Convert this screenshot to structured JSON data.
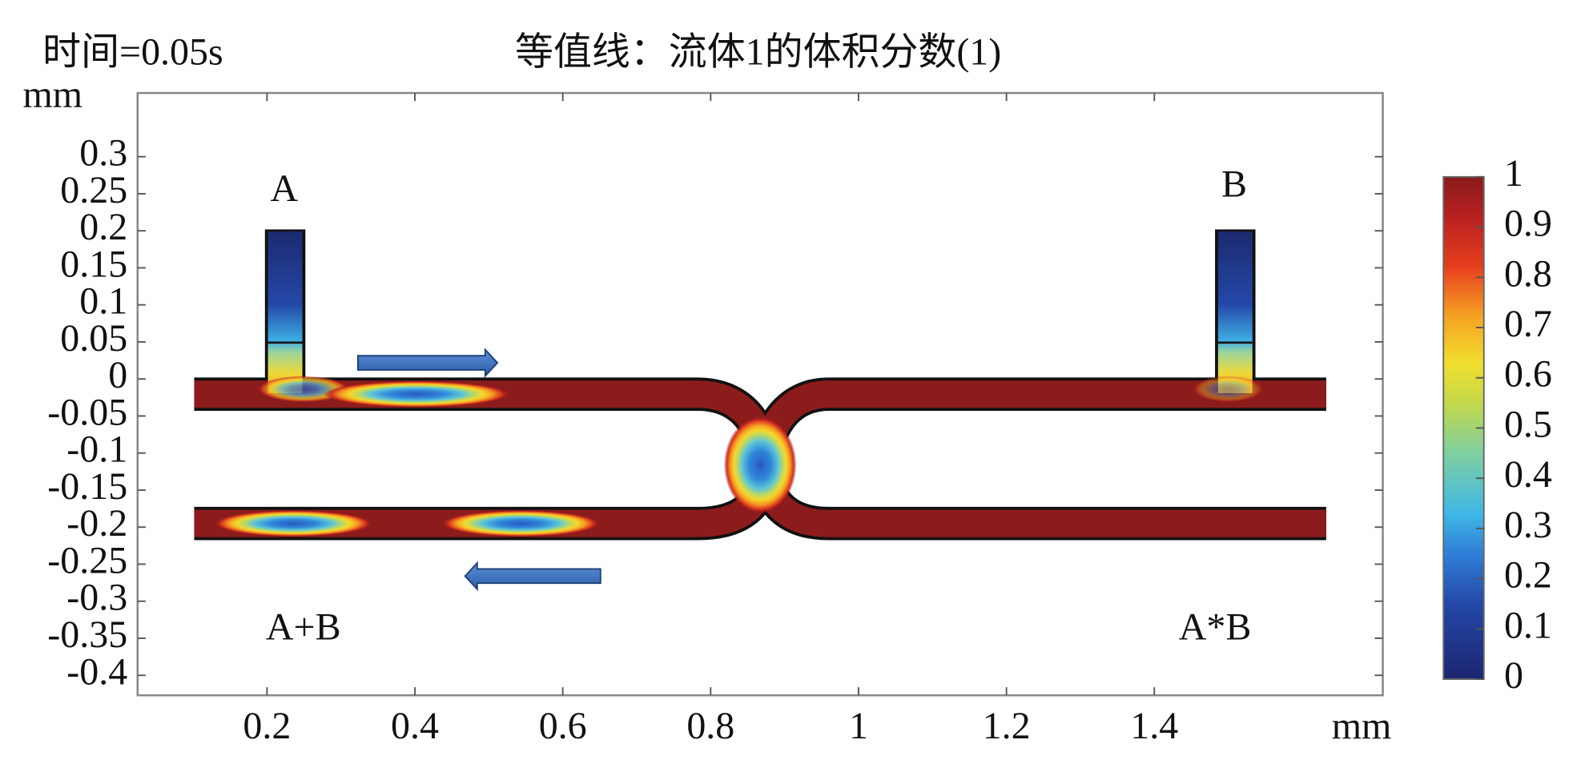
{
  "chart_data": {
    "type": "contour",
    "time_label": "时间=0.05s",
    "title": "等值线：流体1的体积分数(1)",
    "x_label": "mm",
    "y_label": "mm",
    "xlim": [
      0.025,
      1.709
    ],
    "ylim": [
      -0.427,
      0.386
    ],
    "xticks": [
      0.2,
      0.4,
      0.6,
      0.8,
      1,
      1.2,
      1.4
    ],
    "yticks": [
      0.3,
      0.25,
      0.2,
      0.15,
      0.1,
      0.05,
      0,
      -0.05,
      -0.1,
      -0.15,
      -0.2,
      -0.25,
      -0.3,
      -0.35,
      -0.4
    ],
    "colorbar": {
      "lim": [
        0,
        1
      ],
      "ticks": [
        0,
        0.1,
        0.2,
        0.3,
        0.4,
        0.5,
        0.6,
        0.7,
        0.8,
        0.9,
        1
      ]
    },
    "annotations": [
      "A",
      "B",
      "A+B",
      "A*B"
    ]
  }
}
